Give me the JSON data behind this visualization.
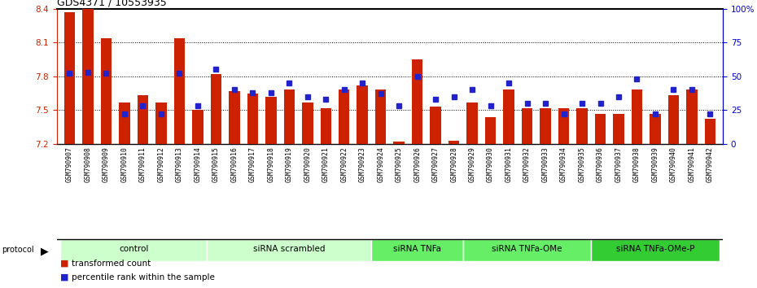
{
  "title": "GDS4371 / 10553935",
  "samples": [
    "GSM790907",
    "GSM790908",
    "GSM790909",
    "GSM790910",
    "GSM790911",
    "GSM790912",
    "GSM790913",
    "GSM790914",
    "GSM790915",
    "GSM790916",
    "GSM790917",
    "GSM790918",
    "GSM790919",
    "GSM790920",
    "GSM790921",
    "GSM790922",
    "GSM790923",
    "GSM790924",
    "GSM790925",
    "GSM790926",
    "GSM790927",
    "GSM790928",
    "GSM790929",
    "GSM790930",
    "GSM790931",
    "GSM790932",
    "GSM790933",
    "GSM790934",
    "GSM790935",
    "GSM790936",
    "GSM790937",
    "GSM790938",
    "GSM790939",
    "GSM790940",
    "GSM790941",
    "GSM790942"
  ],
  "bar_values": [
    8.37,
    8.4,
    8.14,
    7.57,
    7.63,
    7.57,
    8.14,
    7.5,
    7.82,
    7.67,
    7.65,
    7.62,
    7.68,
    7.57,
    7.52,
    7.68,
    7.72,
    7.68,
    7.22,
    7.95,
    7.53,
    7.23,
    7.57,
    7.44,
    7.68,
    7.52,
    7.52,
    7.52,
    7.52,
    7.47,
    7.47,
    7.68,
    7.47,
    7.63,
    7.68,
    7.42
  ],
  "dot_values": [
    52,
    53,
    52,
    22,
    28,
    22,
    52,
    28,
    55,
    40,
    38,
    38,
    45,
    35,
    33,
    40,
    45,
    37,
    28,
    50,
    33,
    35,
    40,
    28,
    45,
    30,
    30,
    22,
    30,
    30,
    35,
    48,
    22,
    40,
    40,
    22
  ],
  "groups": [
    {
      "label": "control",
      "start": 0,
      "end": 7,
      "color": "#ccffcc"
    },
    {
      "label": "siRNA scrambled",
      "start": 8,
      "end": 16,
      "color": "#ccffcc"
    },
    {
      "label": "siRNA TNFa",
      "start": 17,
      "end": 21,
      "color": "#66ee66"
    },
    {
      "label": "siRNA TNFa-OMe",
      "start": 22,
      "end": 28,
      "color": "#66ee66"
    },
    {
      "label": "siRNA TNFa-OMe-P",
      "start": 29,
      "end": 35,
      "color": "#33cc33"
    }
  ],
  "ymin": 7.2,
  "ymax": 8.4,
  "yticks": [
    7.2,
    7.5,
    7.8,
    8.1,
    8.4
  ],
  "right_yticks": [
    0,
    25,
    50,
    75,
    100
  ],
  "bar_color": "#cc2200",
  "dot_color": "#2222cc",
  "xtick_bg": "#cccccc",
  "legend_bar": "transformed count",
  "legend_dot": "percentile rank within the sample"
}
